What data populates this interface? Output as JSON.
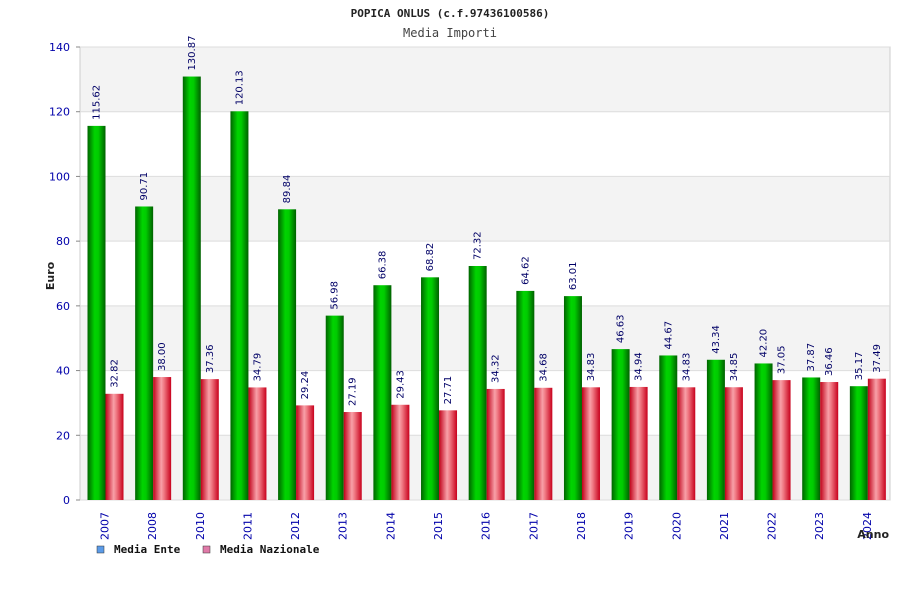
{
  "chart_data": {
    "type": "bar",
    "title": "POPICA ONLUS (c.f.97436100586)",
    "subtitle": "Media Importi",
    "xlabel": "Anno",
    "ylabel": "Euro",
    "ylim": [
      0,
      140
    ],
    "yticks": [
      0,
      20,
      40,
      60,
      80,
      100,
      120,
      140
    ],
    "grid": "horizontal bands",
    "legend_position": "bottom-left",
    "categories": [
      "2007",
      "2008",
      "2010",
      "2011",
      "2012",
      "2013",
      "2014",
      "2015",
      "2016",
      "2017",
      "2018",
      "2019",
      "2020",
      "2021",
      "2022",
      "2023",
      "2024"
    ],
    "series": [
      {
        "name": "Media Ente",
        "color": "#00b000",
        "legend_color": "#5b9be8",
        "values": [
          115.62,
          90.71,
          130.87,
          120.13,
          89.84,
          56.98,
          66.38,
          68.82,
          72.32,
          64.62,
          63.01,
          46.63,
          44.67,
          43.34,
          42.2,
          37.87,
          35.17
        ],
        "labels": [
          "115.62",
          "90.71",
          "130.87",
          "120.13",
          "89.84",
          "56.98",
          "66.38",
          "68.82",
          "72.32",
          "64.62",
          "63.01",
          "46.63",
          "44.67",
          "43.34",
          "42.20",
          "37.87",
          "35.17"
        ]
      },
      {
        "name": "Media Nazionale",
        "color": "#e0303a",
        "legend_color": "#e07aa8",
        "values": [
          32.82,
          38.0,
          37.36,
          34.79,
          29.24,
          27.19,
          29.43,
          27.71,
          34.32,
          34.68,
          34.83,
          34.94,
          34.83,
          34.85,
          37.05,
          36.46,
          37.49
        ],
        "labels": [
          "32.82",
          "38.00",
          "37.36",
          "34.79",
          "29.24",
          "27.19",
          "29.43",
          "27.71",
          "34.32",
          "34.68",
          "34.83",
          "34.94",
          "34.83",
          "34.85",
          "37.05",
          "36.46",
          "37.49"
        ]
      }
    ]
  }
}
